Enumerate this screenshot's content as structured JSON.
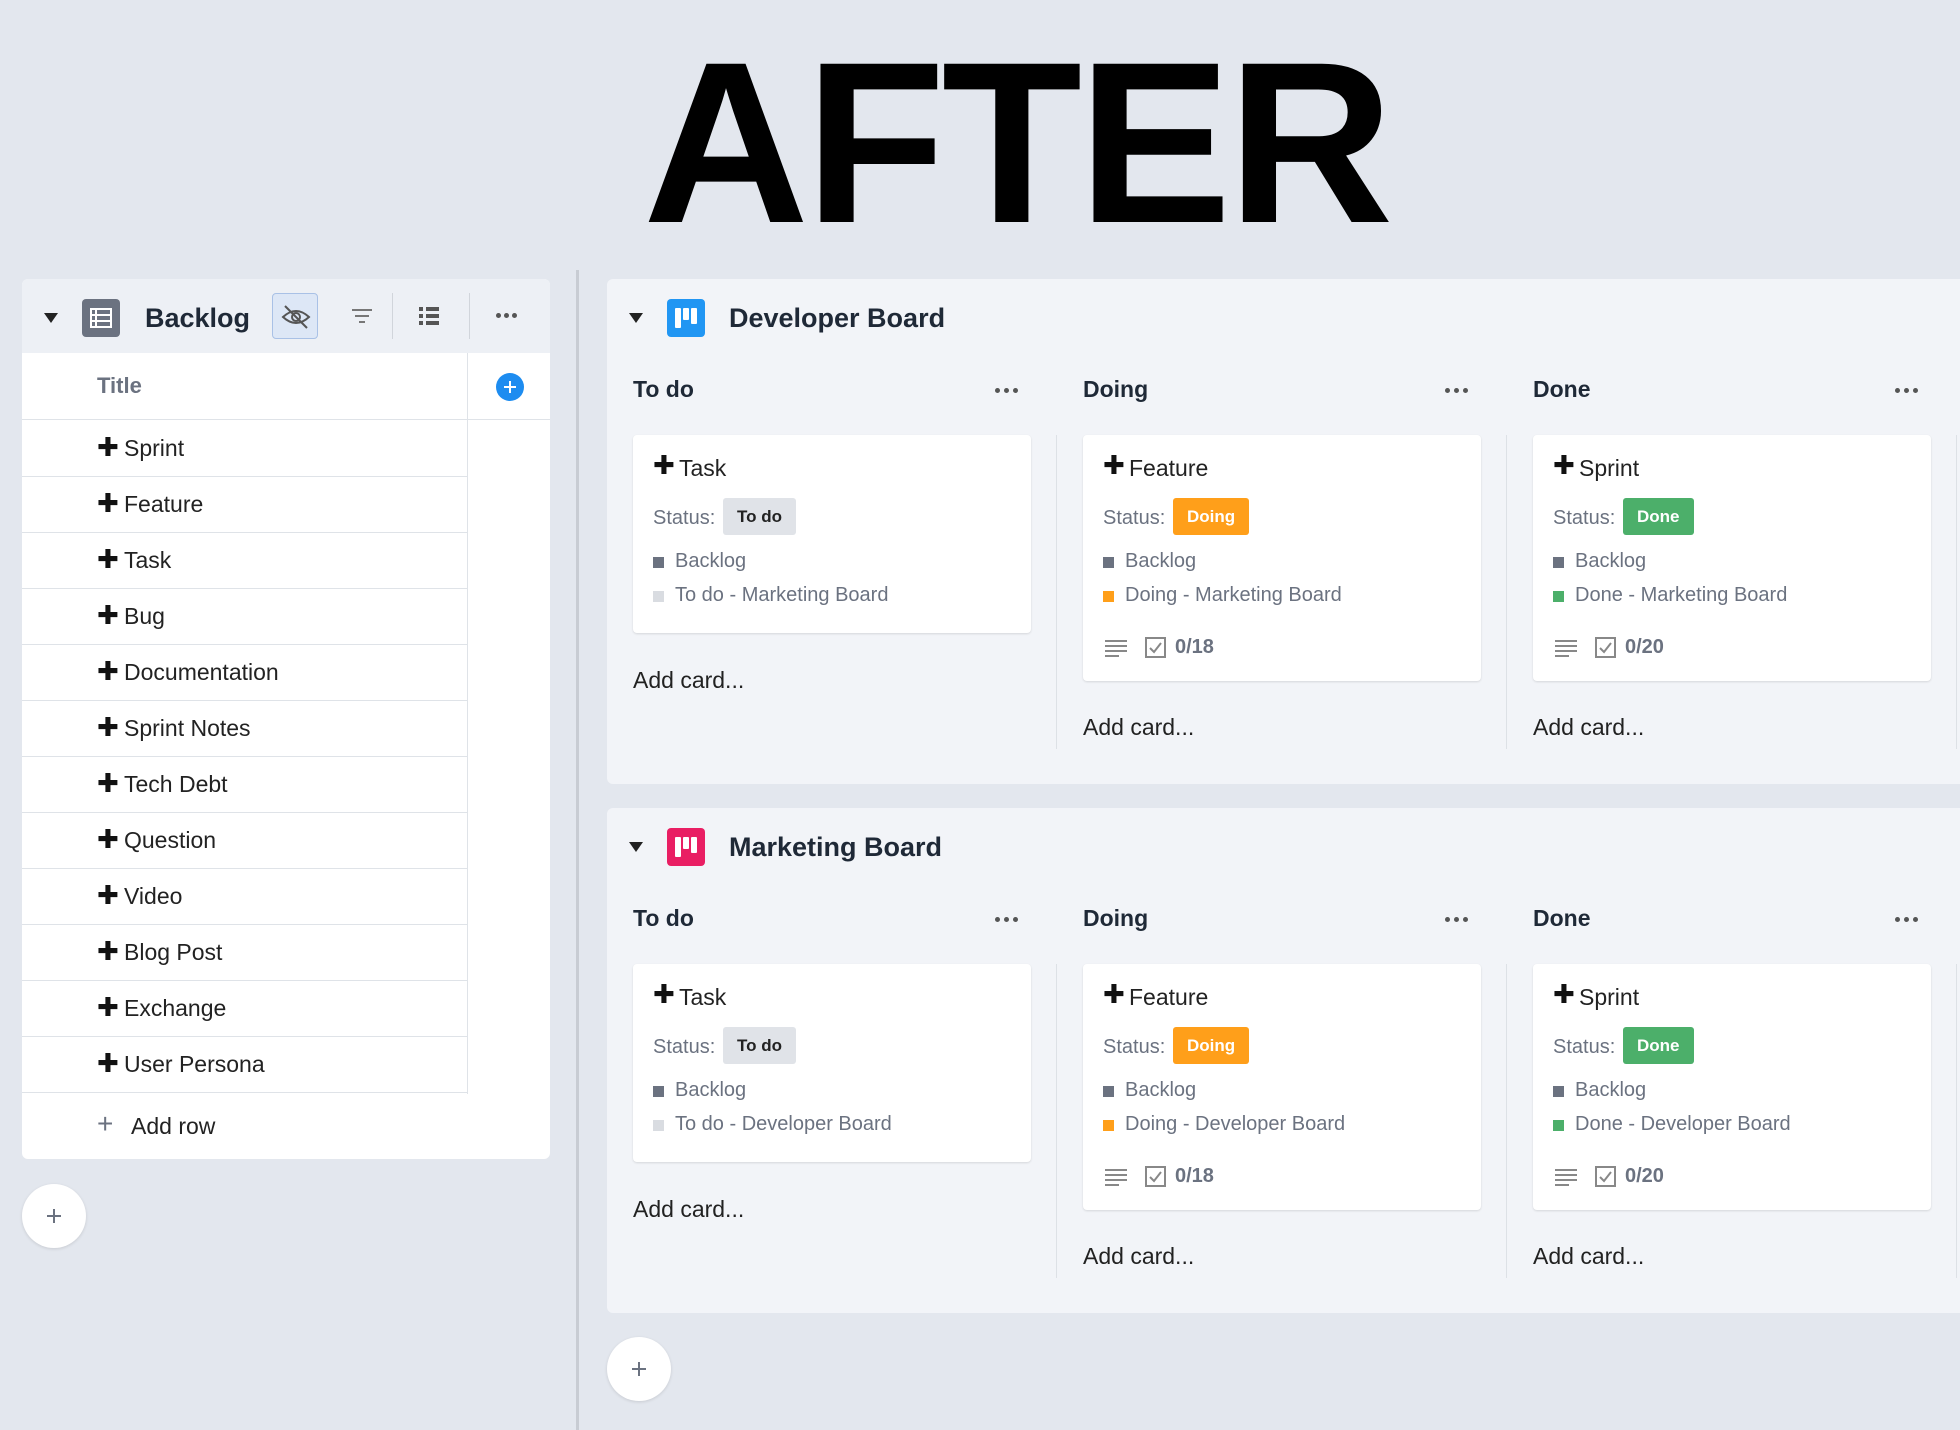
{
  "headline": "AFTER",
  "backlog": {
    "title": "Backlog",
    "column_title": "Title",
    "rows": [
      "Sprint",
      "Feature",
      "Task",
      "Bug",
      "Documentation",
      "Sprint Notes",
      "Tech Debt",
      "Question",
      "Video",
      "Blog Post",
      "Exchange",
      "User Persona"
    ],
    "row_plus": "✚",
    "add_row_symbol": "+",
    "add_row": "Add row"
  },
  "status_label": "Status:",
  "add_card": "Add card...",
  "boards": [
    {
      "title": "Developer Board",
      "icon_color": "#2196f3",
      "columns": [
        {
          "name": "To do",
          "card": {
            "title": "Task",
            "badge": "To do",
            "link1": "Backlog",
            "link2": "To do - Marketing Board"
          }
        },
        {
          "name": "Doing",
          "card": {
            "title": "Feature",
            "badge": "Doing",
            "link1": "Backlog",
            "link2": "Doing - Marketing Board",
            "count": "0/18"
          }
        },
        {
          "name": "Done",
          "card": {
            "title": "Sprint",
            "badge": "Done",
            "link1": "Backlog",
            "link2": "Done - Marketing Board",
            "count": "0/20"
          }
        }
      ]
    },
    {
      "title": "Marketing Board",
      "icon_color": "#e91e63",
      "columns": [
        {
          "name": "To do",
          "card": {
            "title": "Task",
            "badge": "To do",
            "link1": "Backlog",
            "link2": "To do - Developer Board"
          }
        },
        {
          "name": "Doing",
          "card": {
            "title": "Feature",
            "badge": "Doing",
            "link1": "Backlog",
            "link2": "Doing - Developer Board",
            "count": "0/18"
          }
        },
        {
          "name": "Done",
          "card": {
            "title": "Sprint",
            "badge": "Done",
            "link1": "Backlog",
            "link2": "Done - Developer Board",
            "count": "0/20"
          }
        }
      ]
    }
  ],
  "colors": {
    "todo_badge": "#e0e3e8",
    "doing_badge": "#ff9f1a",
    "done_badge": "#4caf6a",
    "accent_blue": "#1d8cf0"
  },
  "icons": [
    "caret-down-icon",
    "table-icon",
    "hide-eye-icon",
    "filter-icon",
    "list-view-icon",
    "more-icon",
    "add-column-icon",
    "board-icon",
    "description-lines-icon",
    "checklist-icon",
    "plus-icon"
  ]
}
